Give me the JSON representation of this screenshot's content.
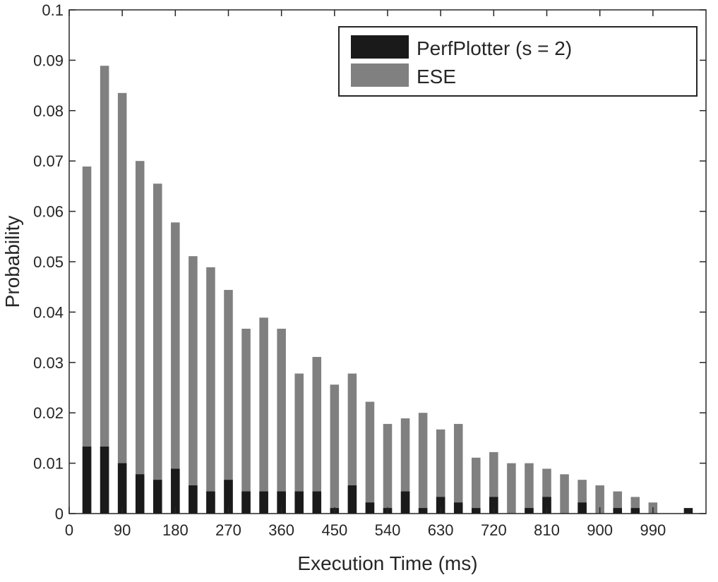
{
  "chart_data": {
    "type": "bar",
    "xlabel": "Execution Time (ms)",
    "ylabel": "Probability",
    "xlim": [
      0,
      1080
    ],
    "ylim": [
      0,
      0.1
    ],
    "xticks": [
      0,
      90,
      180,
      270,
      360,
      450,
      540,
      630,
      720,
      810,
      900,
      990
    ],
    "yticks": [
      0,
      0.01,
      0.02,
      0.03,
      0.04,
      0.05,
      0.06,
      0.07,
      0.08,
      0.09,
      0.1
    ],
    "ytick_labels": [
      "0",
      "0.01",
      "0.02",
      "0.03",
      "0.04",
      "0.05",
      "0.06",
      "0.07",
      "0.08",
      "0.09",
      "0.1"
    ],
    "bar_centers": [
      30,
      60,
      90,
      120,
      150,
      180,
      210,
      240,
      270,
      300,
      330,
      360,
      390,
      420,
      450,
      480,
      510,
      540,
      570,
      600,
      630,
      660,
      690,
      720,
      750,
      780,
      810,
      840,
      870,
      900,
      930,
      960,
      990,
      1020,
      1050
    ],
    "bar_width": 15,
    "legend_position": "top-right",
    "grid": false,
    "series": [
      {
        "name": "ESE",
        "color": "#808080",
        "values": [
          0.0689,
          0.0889,
          0.0835,
          0.07,
          0.0655,
          0.0578,
          0.0511,
          0.0489,
          0.0444,
          0.0367,
          0.0389,
          0.0367,
          0.0278,
          0.0311,
          0.0256,
          0.0278,
          0.0222,
          0.0178,
          0.0189,
          0.02,
          0.0167,
          0.0178,
          0.0111,
          0.0122,
          0.01,
          0.01,
          0.0089,
          0.0078,
          0.0067,
          0.0056,
          0.0044,
          0.0033,
          0.0022,
          0,
          0
        ]
      },
      {
        "name": "PerfPlotter (s = 2)",
        "color": "#1a1a1a",
        "values": [
          0.0133,
          0.0133,
          0.01,
          0.0078,
          0.0067,
          0.0089,
          0.0056,
          0.0044,
          0.0067,
          0.0044,
          0.0044,
          0.0044,
          0.0044,
          0.0044,
          0.0011,
          0.0056,
          0.0022,
          0.0011,
          0.0044,
          0.0011,
          0.0033,
          0.0022,
          0.0011,
          0.0033,
          0,
          0.0011,
          0.0033,
          0,
          0.0022,
          0,
          0.0011,
          0.0011,
          0,
          0,
          0.0011
        ]
      }
    ]
  },
  "legend": {
    "entries": [
      {
        "label": "PerfPlotter (s = 2)",
        "color": "#1a1a1a"
      },
      {
        "label": "ESE",
        "color": "#808080"
      }
    ]
  }
}
